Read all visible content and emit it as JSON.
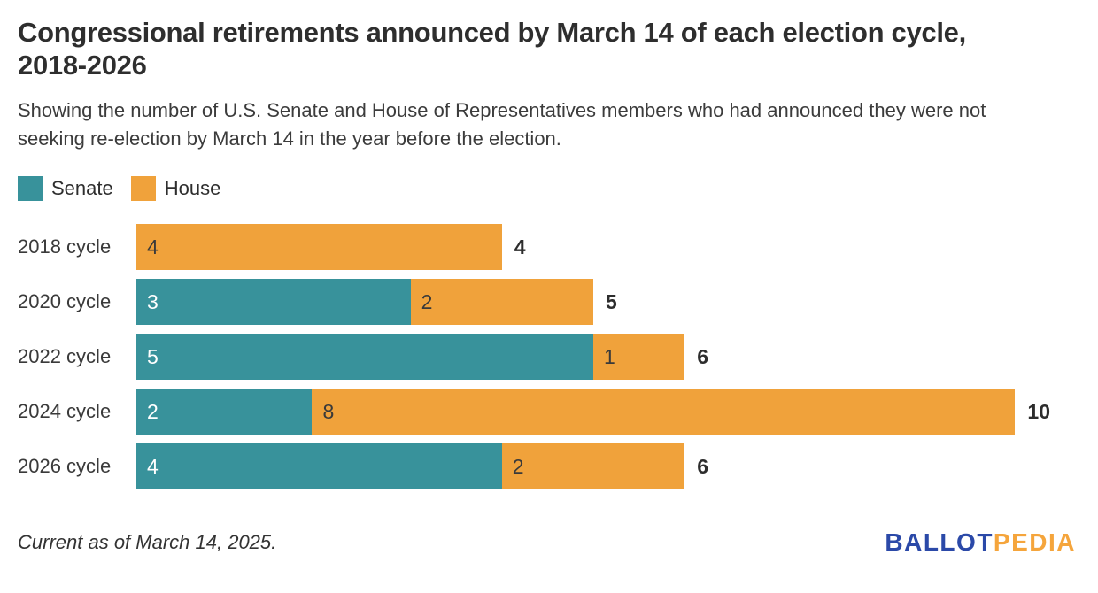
{
  "header": {
    "title_line1": "Congressional retirements announced by March 14 of each election cycle,",
    "title_line2": "2018-2026",
    "subtitle_line1": "Showing the number of U.S. Senate and House of Representatives members who had announced they were not",
    "subtitle_line2": "seeking re-election by March 14 in the year before the election."
  },
  "legend": {
    "items": [
      {
        "label": "Senate",
        "color": "#38929B"
      },
      {
        "label": "House",
        "color": "#F0A23B"
      }
    ]
  },
  "chart_data": {
    "type": "bar",
    "subtype": "horizontal-stacked",
    "categories": [
      "2018 cycle",
      "2020 cycle",
      "2022 cycle",
      "2024 cycle",
      "2026 cycle"
    ],
    "series": [
      {
        "name": "Senate",
        "color": "#38929B",
        "text_color": "#ffffff",
        "values": [
          0,
          3,
          5,
          2,
          4
        ]
      },
      {
        "name": "House",
        "color": "#F0A23B",
        "text_color": "#3a3a3a",
        "values": [
          4,
          2,
          1,
          8,
          2
        ]
      }
    ],
    "totals": [
      4,
      5,
      6,
      10,
      6
    ],
    "xlim": [
      0,
      10
    ],
    "grid": false,
    "legend_position": "top-left",
    "value_labels": "inside-start",
    "total_labels": "end-of-bar"
  },
  "footer": {
    "note": "Current as of March 14, 2025.",
    "logo": {
      "part1": "BALLOT",
      "part1_color": "#2b49a8",
      "part2": "PEDIA",
      "part2_color": "#f5a53c"
    }
  }
}
